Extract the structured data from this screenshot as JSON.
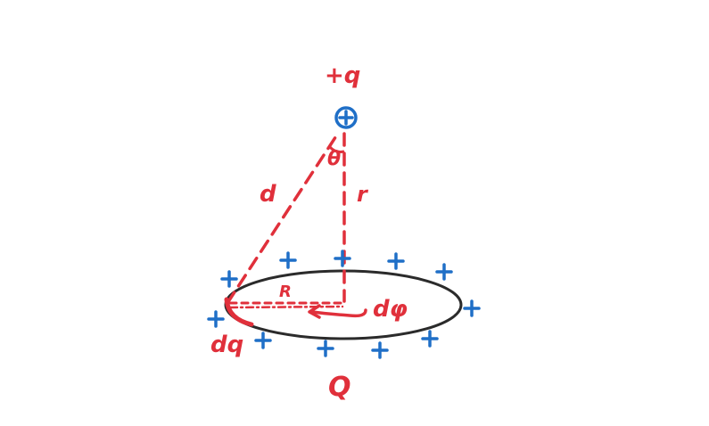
{
  "labels": {
    "charge": "+q",
    "theta": "θ",
    "d": "d",
    "r": "r",
    "R": "R",
    "dphi": "dφ",
    "dq": "dq",
    "Q": "Q"
  },
  "colors": {
    "red": "#e0303b",
    "blue": "#1f6fc7",
    "ring": "#2b2b2b",
    "background": "#ffffff"
  },
  "icons": {
    "charge": "plus-in-circle",
    "ring_charges": "plus"
  }
}
